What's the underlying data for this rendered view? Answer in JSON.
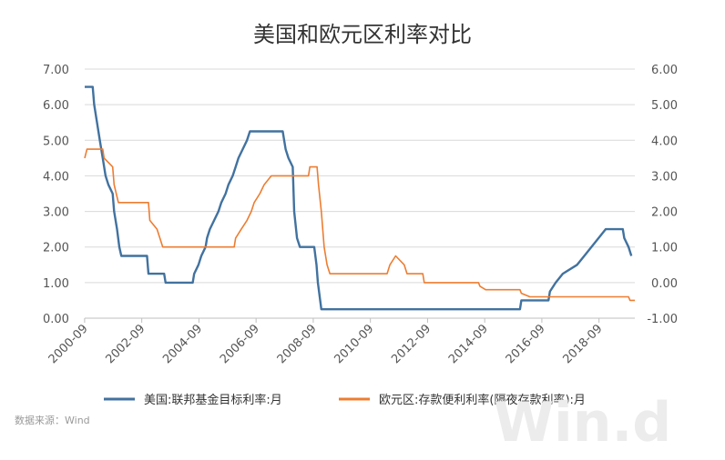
{
  "chart_data": {
    "type": "line",
    "title": "美国和欧元区利率对比",
    "xlabel": "",
    "ylabel": "",
    "x_range": [
      2000.67,
      2019.92
    ],
    "x_tick_labels": [
      "2000-09",
      "2002-09",
      "2004-09",
      "2006-09",
      "2008-09",
      "2010-09",
      "2012-09",
      "2014-09",
      "2016-09",
      "2018-09"
    ],
    "y_left": {
      "ylim": [
        0,
        7
      ],
      "tick_labels": [
        "0.00",
        "1.00",
        "2.00",
        "3.00",
        "4.00",
        "5.00",
        "6.00",
        "7.00"
      ]
    },
    "y_right": {
      "ylim": [
        -1,
        6
      ],
      "tick_labels": [
        "-1.00",
        "0.00",
        "1.00",
        "2.00",
        "3.00",
        "4.00",
        "5.00",
        "6.00"
      ]
    },
    "grid": "horizontal",
    "legend_position": "bottom",
    "series": [
      {
        "name": "美国:联邦基金目标利率:月",
        "axis": "left",
        "color": "#41729f",
        "points": [
          [
            2000.67,
            6.5
          ],
          [
            2000.95,
            6.5
          ],
          [
            2001.0,
            6.0
          ],
          [
            2001.1,
            5.5
          ],
          [
            2001.2,
            5.0
          ],
          [
            2001.3,
            4.5
          ],
          [
            2001.4,
            4.0
          ],
          [
            2001.5,
            3.75
          ],
          [
            2001.65,
            3.5
          ],
          [
            2001.7,
            3.0
          ],
          [
            2001.8,
            2.5
          ],
          [
            2001.88,
            2.0
          ],
          [
            2001.95,
            1.75
          ],
          [
            2002.85,
            1.75
          ],
          [
            2002.9,
            1.25
          ],
          [
            2003.45,
            1.25
          ],
          [
            2003.5,
            1.0
          ],
          [
            2004.45,
            1.0
          ],
          [
            2004.5,
            1.25
          ],
          [
            2004.65,
            1.5
          ],
          [
            2004.75,
            1.75
          ],
          [
            2004.9,
            2.0
          ],
          [
            2004.95,
            2.25
          ],
          [
            2005.05,
            2.5
          ],
          [
            2005.2,
            2.75
          ],
          [
            2005.35,
            3.0
          ],
          [
            2005.45,
            3.25
          ],
          [
            2005.6,
            3.5
          ],
          [
            2005.7,
            3.75
          ],
          [
            2005.85,
            4.0
          ],
          [
            2005.95,
            4.25
          ],
          [
            2006.05,
            4.5
          ],
          [
            2006.2,
            4.75
          ],
          [
            2006.35,
            5.0
          ],
          [
            2006.45,
            5.25
          ],
          [
            2007.6,
            5.25
          ],
          [
            2007.7,
            4.75
          ],
          [
            2007.8,
            4.5
          ],
          [
            2007.95,
            4.25
          ],
          [
            2008.0,
            3.0
          ],
          [
            2008.1,
            2.25
          ],
          [
            2008.2,
            2.0
          ],
          [
            2008.7,
            2.0
          ],
          [
            2008.78,
            1.5
          ],
          [
            2008.83,
            1.0
          ],
          [
            2008.95,
            0.25
          ],
          [
            2015.9,
            0.25
          ],
          [
            2015.95,
            0.5
          ],
          [
            2016.9,
            0.5
          ],
          [
            2016.95,
            0.75
          ],
          [
            2017.15,
            1.0
          ],
          [
            2017.4,
            1.25
          ],
          [
            2017.9,
            1.5
          ],
          [
            2018.15,
            1.75
          ],
          [
            2018.4,
            2.0
          ],
          [
            2018.65,
            2.25
          ],
          [
            2018.9,
            2.5
          ],
          [
            2019.5,
            2.5
          ],
          [
            2019.55,
            2.25
          ],
          [
            2019.7,
            2.0
          ],
          [
            2019.8,
            1.75
          ]
        ]
      },
      {
        "name": "欧元区:存款便利利率(隔夜存款利率):月",
        "axis": "right",
        "color": "#ed7d31",
        "points": [
          [
            2000.67,
            3.5
          ],
          [
            2000.75,
            3.75
          ],
          [
            2001.3,
            3.75
          ],
          [
            2001.35,
            3.5
          ],
          [
            2001.65,
            3.25
          ],
          [
            2001.7,
            2.75
          ],
          [
            2001.85,
            2.25
          ],
          [
            2002.9,
            2.25
          ],
          [
            2002.95,
            1.75
          ],
          [
            2003.2,
            1.5
          ],
          [
            2003.4,
            1.0
          ],
          [
            2005.9,
            1.0
          ],
          [
            2005.95,
            1.25
          ],
          [
            2006.15,
            1.5
          ],
          [
            2006.35,
            1.75
          ],
          [
            2006.5,
            2.0
          ],
          [
            2006.6,
            2.25
          ],
          [
            2006.8,
            2.5
          ],
          [
            2006.95,
            2.75
          ],
          [
            2007.2,
            3.0
          ],
          [
            2008.5,
            3.0
          ],
          [
            2008.55,
            3.25
          ],
          [
            2008.8,
            3.25
          ],
          [
            2008.85,
            2.75
          ],
          [
            2008.95,
            2.0
          ],
          [
            2009.05,
            1.0
          ],
          [
            2009.15,
            0.5
          ],
          [
            2009.25,
            0.25
          ],
          [
            2011.25,
            0.25
          ],
          [
            2011.35,
            0.5
          ],
          [
            2011.55,
            0.75
          ],
          [
            2011.85,
            0.5
          ],
          [
            2011.95,
            0.25
          ],
          [
            2012.5,
            0.25
          ],
          [
            2012.55,
            0.0
          ],
          [
            2014.45,
            0.0
          ],
          [
            2014.5,
            -0.1
          ],
          [
            2014.7,
            -0.2
          ],
          [
            2015.9,
            -0.2
          ],
          [
            2015.95,
            -0.3
          ],
          [
            2016.25,
            -0.4
          ],
          [
            2019.7,
            -0.4
          ],
          [
            2019.75,
            -0.5
          ],
          [
            2019.92,
            -0.5
          ]
        ]
      }
    ]
  },
  "footer": {
    "source": "数据来源：Wind",
    "watermark": "Win.d"
  }
}
